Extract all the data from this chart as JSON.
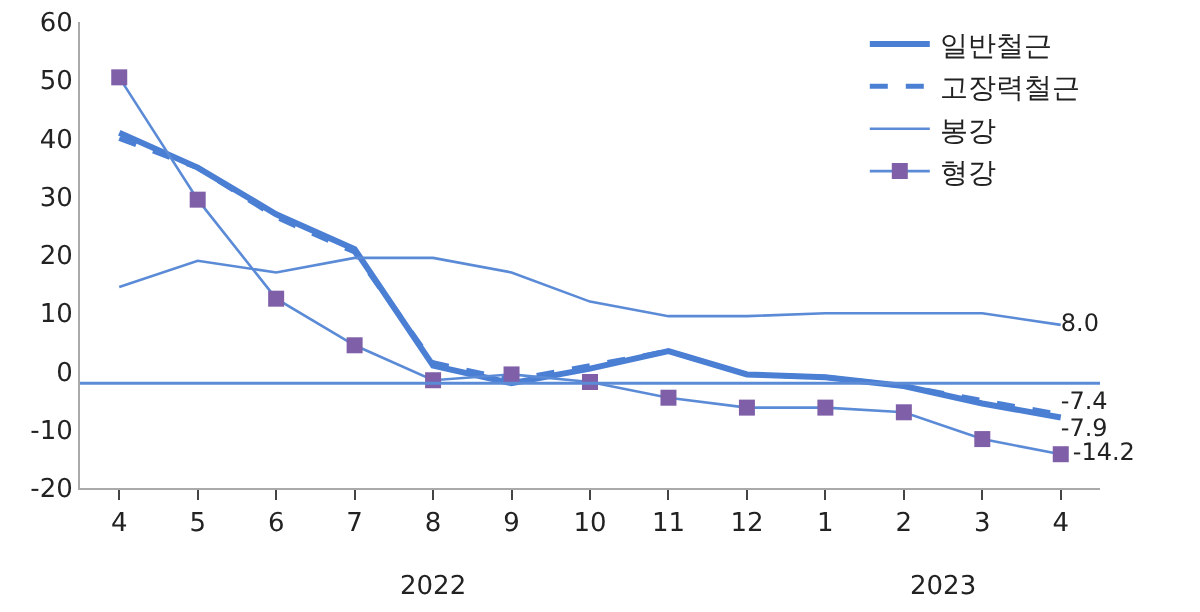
{
  "chart_data": {
    "type": "line",
    "categories": [
      "4",
      "5",
      "6",
      "7",
      "8",
      "9",
      "10",
      "11",
      "12",
      "1",
      "2",
      "3",
      "4"
    ],
    "annotations": [
      "2022",
      "2023"
    ],
    "ylim": [
      -20,
      60
    ],
    "yticks": [
      -20,
      -10,
      0,
      10,
      20,
      30,
      40,
      50,
      60
    ],
    "series": [
      {
        "name": "일반철근",
        "color": "#4a7fd4",
        "line_style": "solid",
        "marker": "none",
        "values": [
          41,
          35,
          27,
          21,
          1,
          -2,
          0.5,
          3.5,
          -0.5,
          -1,
          -2.5,
          -5.5,
          -7.9
        ],
        "value_labels": [
          null,
          null,
          null,
          null,
          null,
          null,
          null,
          null,
          null,
          null,
          null,
          null,
          "-7.9"
        ]
      },
      {
        "name": "고장력철근",
        "color": "#4a7fd4",
        "line_style": "dashed",
        "marker": "none",
        "values": [
          40,
          35,
          26.5,
          20.5,
          1.5,
          -1.5,
          1,
          3.5,
          -0.5,
          -1,
          -2.5,
          -5,
          -7.4
        ],
        "value_labels": [
          null,
          null,
          null,
          null,
          null,
          null,
          null,
          null,
          null,
          null,
          null,
          null,
          "-7.4"
        ]
      },
      {
        "name": "봉강",
        "color": "#5b8bd6",
        "line_style": "solid",
        "marker": "none",
        "values": [
          14.5,
          19,
          17,
          19.5,
          19.5,
          17,
          12,
          9.5,
          9.5,
          10,
          10,
          10,
          8.0
        ],
        "value_labels": [
          null,
          null,
          null,
          null,
          null,
          null,
          null,
          null,
          null,
          null,
          null,
          null,
          "8.0"
        ]
      },
      {
        "name": "형강",
        "color": "#5b8bd6",
        "line_style": "solid",
        "marker": "square",
        "colors": [
          "#7f5fa8",
          "#7f5fa8",
          "#7f5fa8",
          "#7f5fa8",
          "#7f5fa8",
          "#7f5fa8",
          "#7f5fa8",
          "#7f5fa8",
          "#7f5fa8",
          "#7f5fa8",
          "#7f5fa8",
          "#7f5fa8",
          "#7f5fa8"
        ],
        "values": [
          50.5,
          29.5,
          12.5,
          4.5,
          -1.5,
          -0.5,
          -1.8,
          -4.5,
          -6.2,
          -6.2,
          -7,
          -11.6,
          -14.2
        ],
        "value_labels": [
          null,
          null,
          null,
          null,
          null,
          null,
          null,
          null,
          null,
          null,
          null,
          null,
          "-14.2"
        ]
      }
    ],
    "ref_lines": [
      {
        "axis": "y",
        "value": -2,
        "color": "#5b8bd6"
      }
    ],
    "legend": "top right",
    "grid": false
  }
}
